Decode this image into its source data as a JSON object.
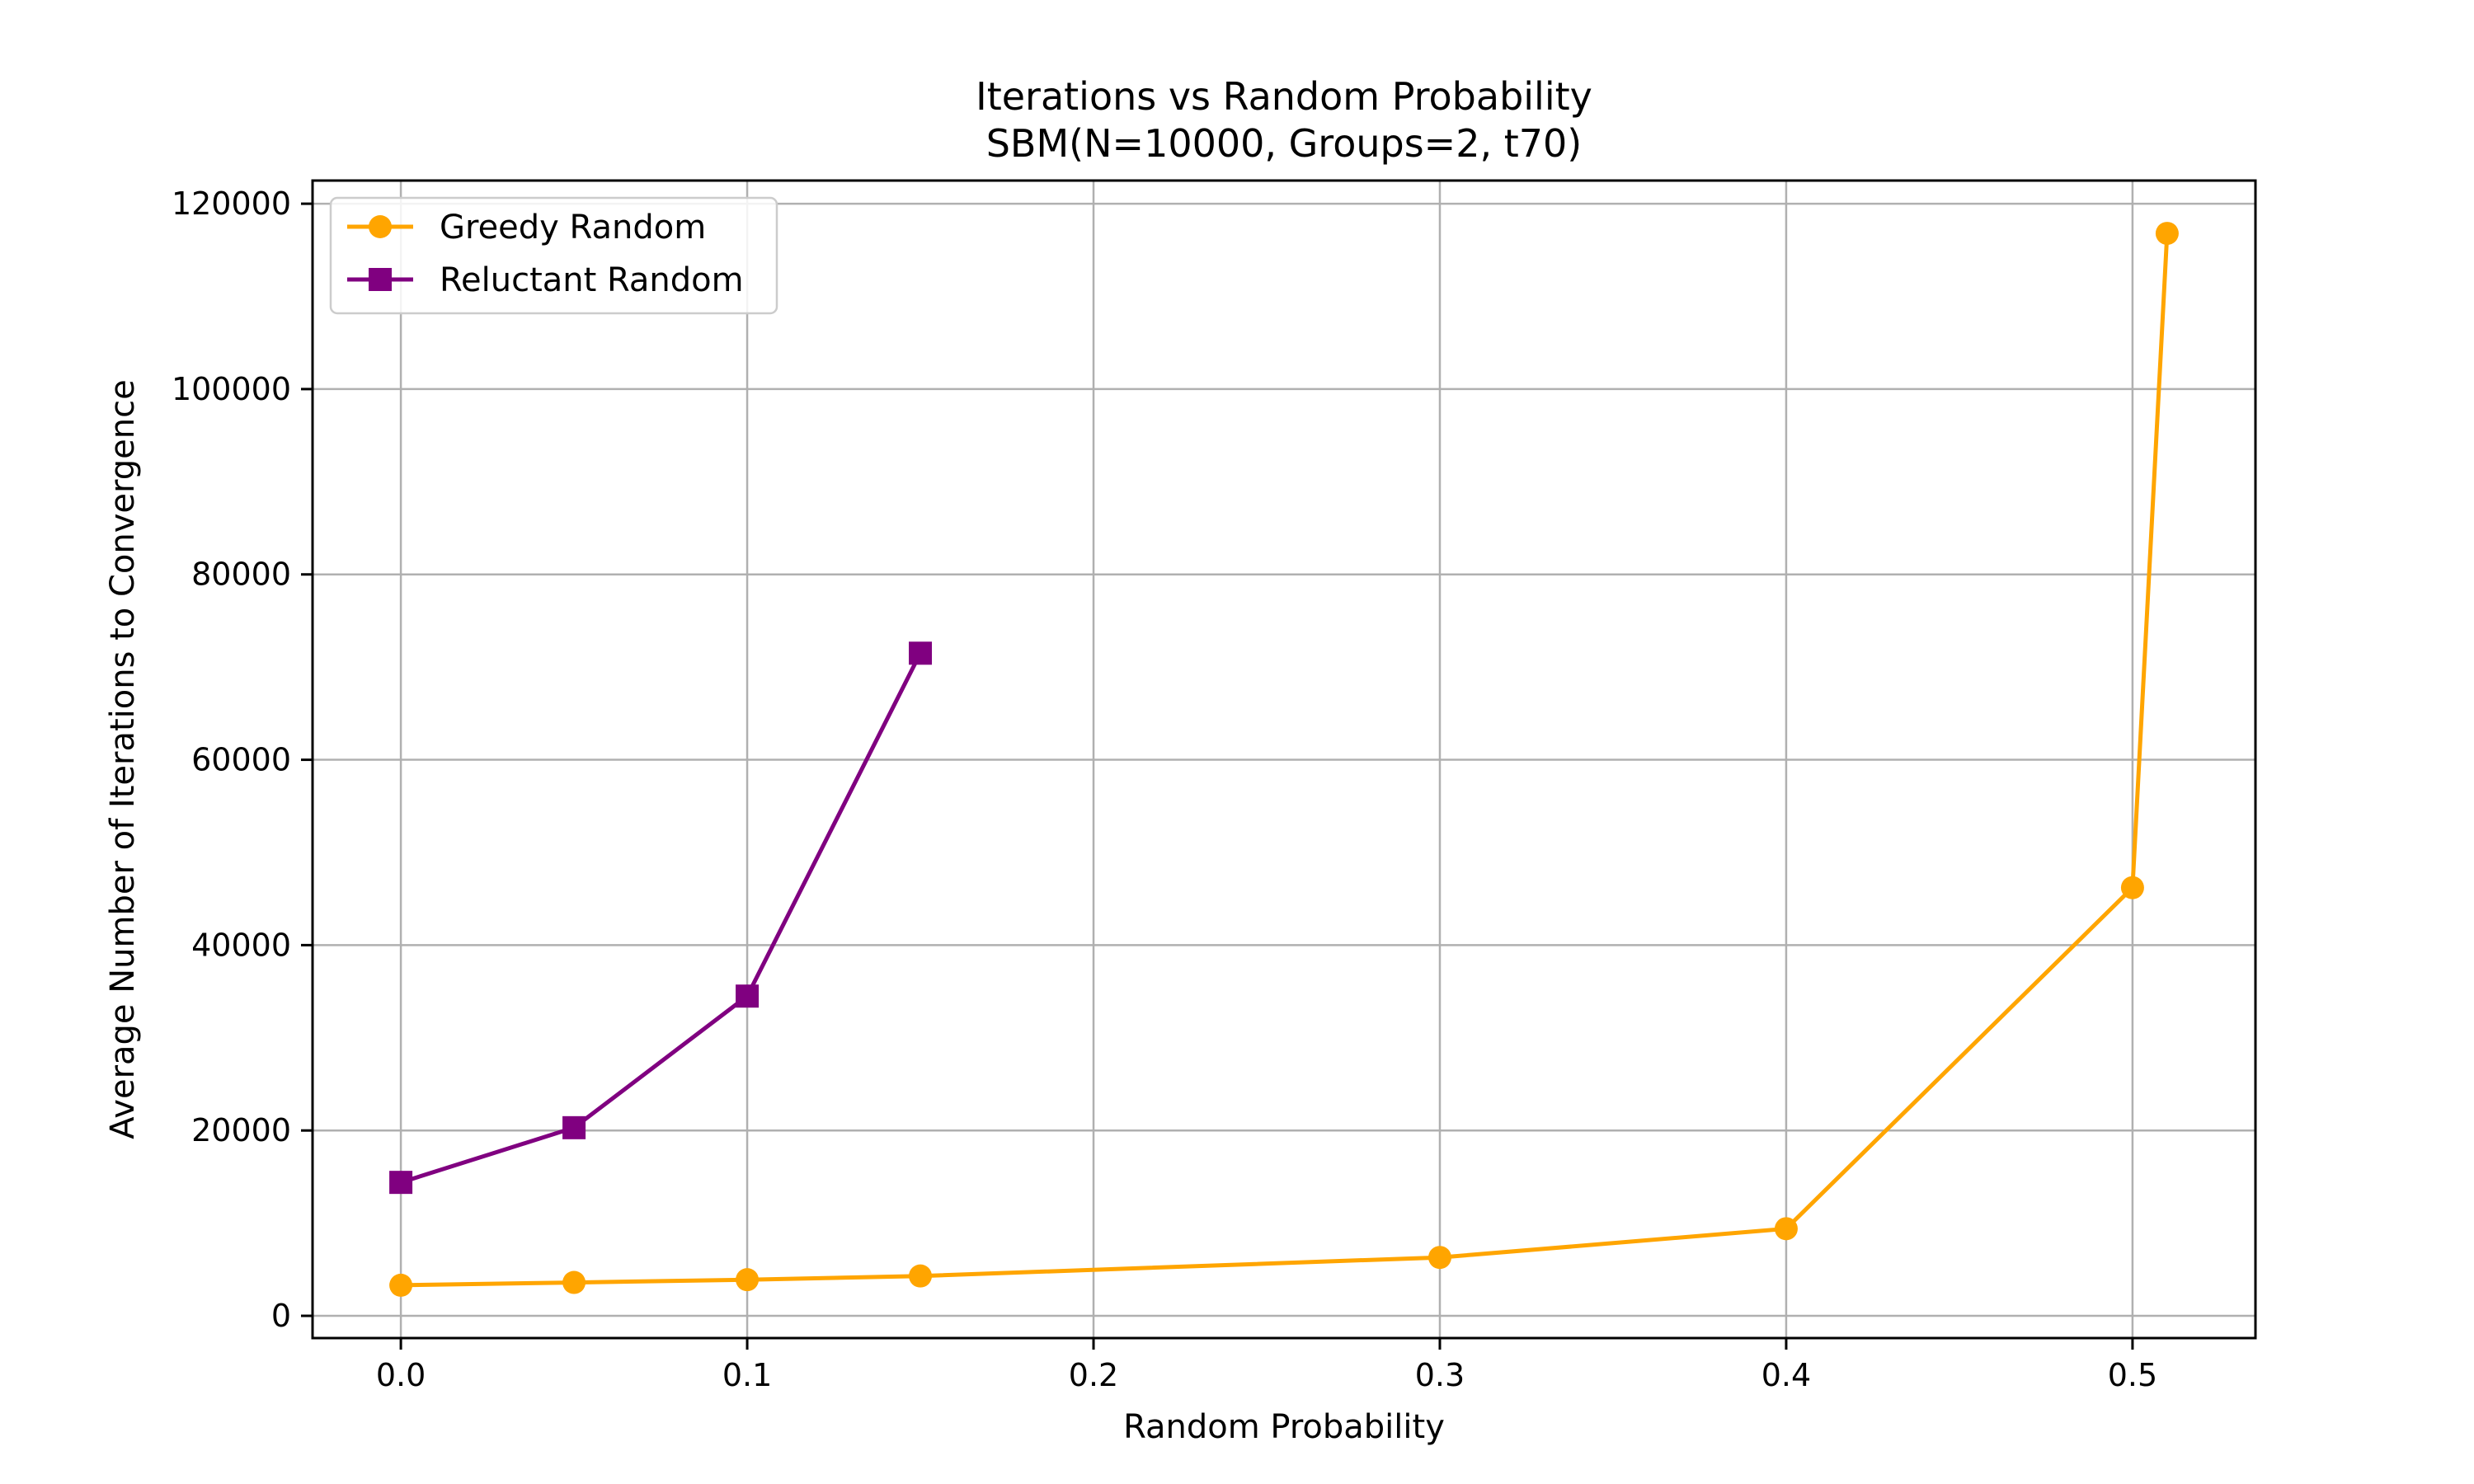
{
  "chart_data": {
    "type": "line",
    "title": "Iterations vs Random Probability",
    "subtitle": "SBM(N=10000, Groups=2, t70)",
    "xlabel": "Random Probability",
    "ylabel": "Average Number of Iterations to Convergence",
    "xlim": [
      -0.0255,
      0.5355
    ],
    "ylim": [
      -2400,
      122500
    ],
    "x_ticks": [
      0.0,
      0.1,
      0.2,
      0.3,
      0.4,
      0.5
    ],
    "x_tick_labels": [
      "0.0",
      "0.1",
      "0.2",
      "0.3",
      "0.4",
      "0.5"
    ],
    "y_ticks": [
      0,
      20000,
      40000,
      60000,
      80000,
      100000,
      120000
    ],
    "y_tick_labels": [
      "0",
      "20000",
      "40000",
      "60000",
      "80000",
      "100000",
      "120000"
    ],
    "grid": true,
    "legend_position": "top-left",
    "series": [
      {
        "name": "Greedy Random",
        "color": "#FFA500",
        "marker": "circle",
        "x": [
          0.0,
          0.05,
          0.1,
          0.15,
          0.3,
          0.4,
          0.5,
          0.51
        ],
        "y": [
          3300,
          3600,
          3900,
          4300,
          6300,
          9400,
          46200,
          116800
        ]
      },
      {
        "name": "Reluctant Random",
        "color": "#800080",
        "marker": "square",
        "x": [
          0.0,
          0.05,
          0.1,
          0.15
        ],
        "y": [
          14400,
          20300,
          34500,
          71500
        ]
      }
    ]
  }
}
